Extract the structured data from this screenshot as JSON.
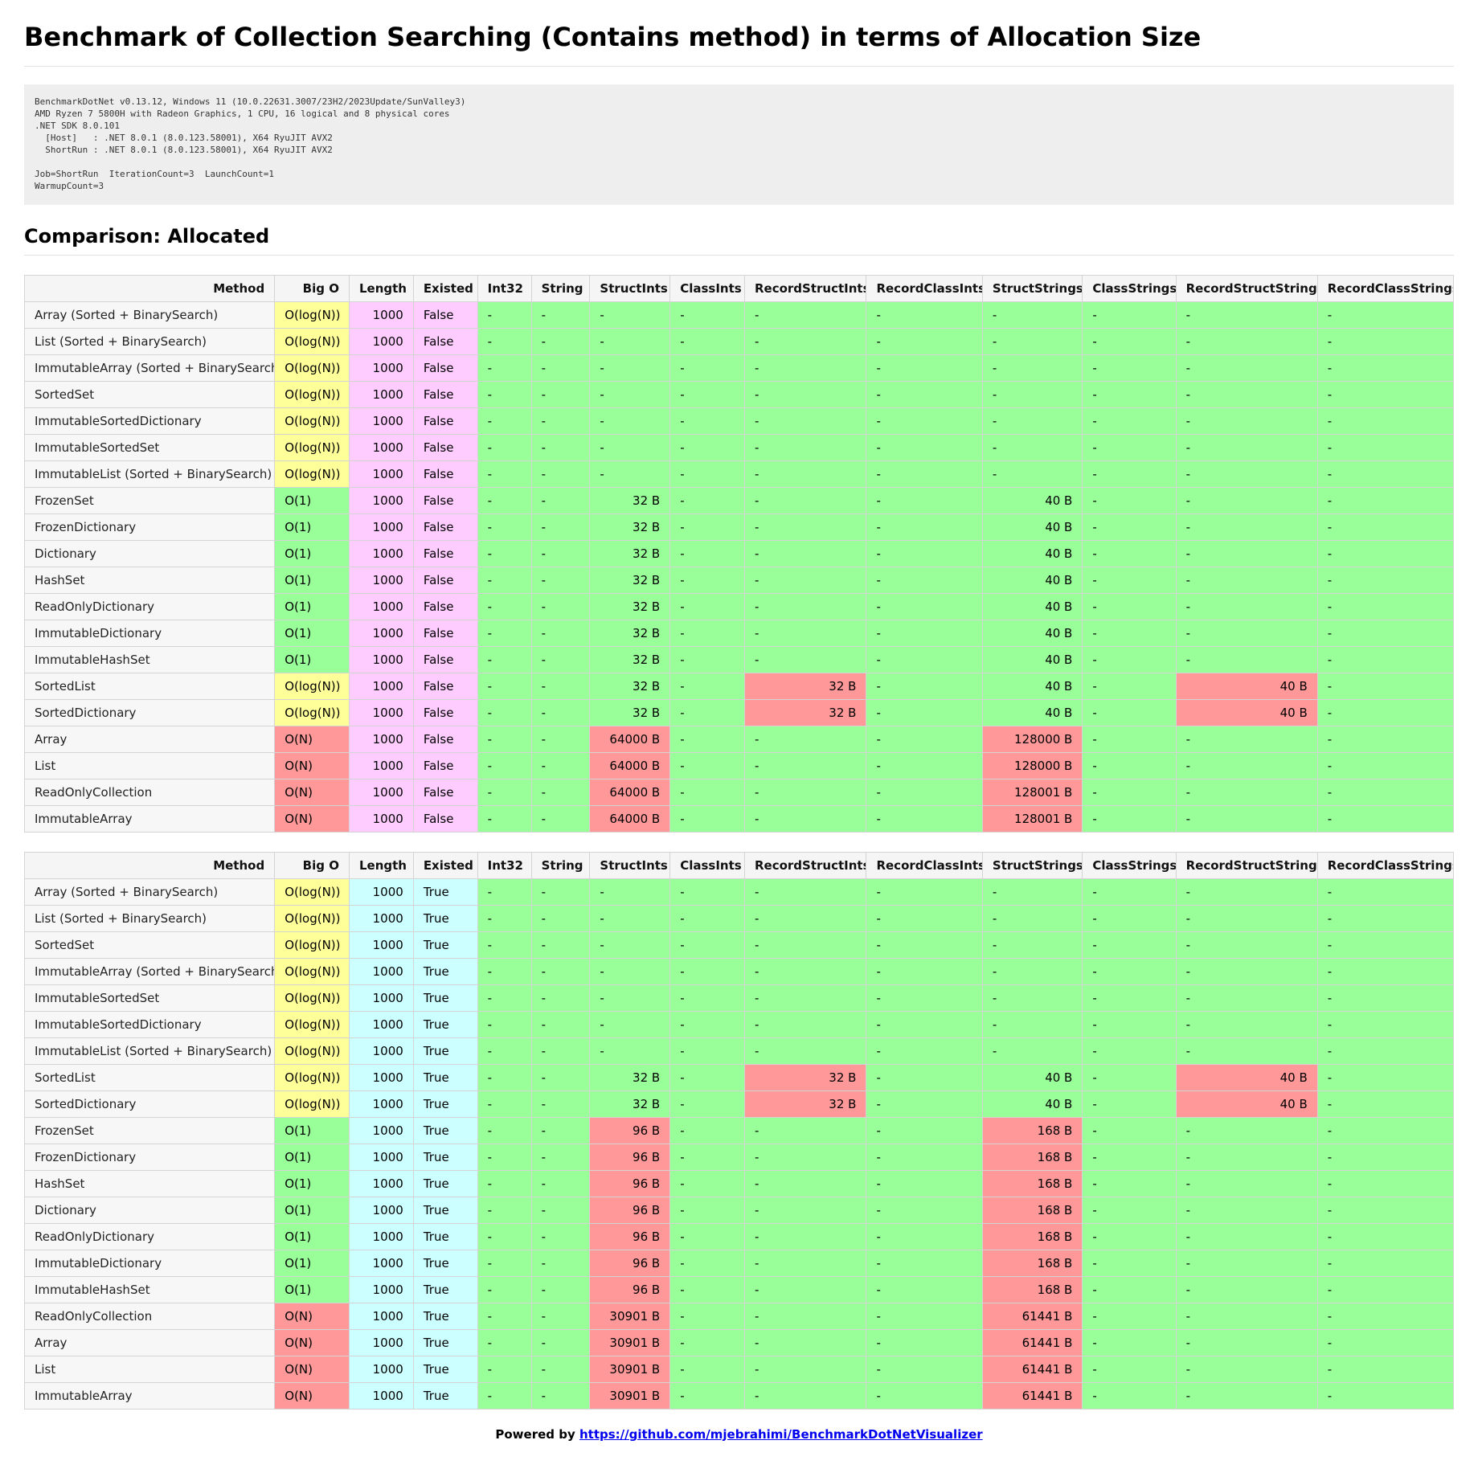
{
  "title": "Benchmark of Collection Searching (Contains method) in terms of Allocation Size",
  "environment": "BenchmarkDotNet v0.13.12, Windows 11 (10.0.22631.3007/23H2/2023Update/SunValley3)\nAMD Ryzen 7 5800H with Radeon Graphics, 1 CPU, 16 logical and 8 physical cores\n.NET SDK 8.0.101\n  [Host]   : .NET 8.0.1 (8.0.123.58001), X64 RyuJIT AVX2\n  ShortRun : .NET 8.0.1 (8.0.123.58001), X64 RyuJIT AVX2\n\nJob=ShortRun  IterationCount=3  LaunchCount=1\nWarmupCount=3",
  "section_title": "Comparison: Allocated",
  "columns": [
    "Method",
    "Big O",
    "Length",
    "Existed",
    "Int32",
    "String",
    "StructInts",
    "ClassInts",
    "RecordStructInts",
    "RecordClassInts",
    "StructStrings",
    "ClassStrings",
    "RecordStructStrings",
    "RecordClassStrings"
  ],
  "colors": {
    "good": "#99ff99",
    "medium": "#ffff99",
    "bad": "#ff9999",
    "existed_false": "#ffccff",
    "existed_true": "#ccffff"
  },
  "tables": [
    {
      "rows": [
        {
          "method": "Array (Sorted + BinarySearch)",
          "bigo": "O(log(N))",
          "length": "1000",
          "existed": "False",
          "values": [
            "-",
            "-",
            "-",
            "-",
            "-",
            "-",
            "-",
            "-",
            "-",
            "-"
          ]
        },
        {
          "method": "List (Sorted + BinarySearch)",
          "bigo": "O(log(N))",
          "length": "1000",
          "existed": "False",
          "values": [
            "-",
            "-",
            "-",
            "-",
            "-",
            "-",
            "-",
            "-",
            "-",
            "-"
          ]
        },
        {
          "method": "ImmutableArray (Sorted + BinarySearch)",
          "bigo": "O(log(N))",
          "length": "1000",
          "existed": "False",
          "values": [
            "-",
            "-",
            "-",
            "-",
            "-",
            "-",
            "-",
            "-",
            "-",
            "-"
          ]
        },
        {
          "method": "SortedSet",
          "bigo": "O(log(N))",
          "length": "1000",
          "existed": "False",
          "values": [
            "-",
            "-",
            "-",
            "-",
            "-",
            "-",
            "-",
            "-",
            "-",
            "-"
          ]
        },
        {
          "method": "ImmutableSortedDictionary",
          "bigo": "O(log(N))",
          "length": "1000",
          "existed": "False",
          "values": [
            "-",
            "-",
            "-",
            "-",
            "-",
            "-",
            "-",
            "-",
            "-",
            "-"
          ]
        },
        {
          "method": "ImmutableSortedSet",
          "bigo": "O(log(N))",
          "length": "1000",
          "existed": "False",
          "values": [
            "-",
            "-",
            "-",
            "-",
            "-",
            "-",
            "-",
            "-",
            "-",
            "-"
          ]
        },
        {
          "method": "ImmutableList (Sorted + BinarySearch)",
          "bigo": "O(log(N))",
          "length": "1000",
          "existed": "False",
          "values": [
            "-",
            "-",
            "-",
            "-",
            "-",
            "-",
            "-",
            "-",
            "-",
            "-"
          ]
        },
        {
          "method": "FrozenSet",
          "bigo": "O(1)",
          "length": "1000",
          "existed": "False",
          "values": [
            "-",
            "-",
            "32 B",
            "-",
            "-",
            "-",
            "40 B",
            "-",
            "-",
            "-"
          ]
        },
        {
          "method": "FrozenDictionary",
          "bigo": "O(1)",
          "length": "1000",
          "existed": "False",
          "values": [
            "-",
            "-",
            "32 B",
            "-",
            "-",
            "-",
            "40 B",
            "-",
            "-",
            "-"
          ]
        },
        {
          "method": "Dictionary",
          "bigo": "O(1)",
          "length": "1000",
          "existed": "False",
          "values": [
            "-",
            "-",
            "32 B",
            "-",
            "-",
            "-",
            "40 B",
            "-",
            "-",
            "-"
          ]
        },
        {
          "method": "HashSet",
          "bigo": "O(1)",
          "length": "1000",
          "existed": "False",
          "values": [
            "-",
            "-",
            "32 B",
            "-",
            "-",
            "-",
            "40 B",
            "-",
            "-",
            "-"
          ]
        },
        {
          "method": "ReadOnlyDictionary",
          "bigo": "O(1)",
          "length": "1000",
          "existed": "False",
          "values": [
            "-",
            "-",
            "32 B",
            "-",
            "-",
            "-",
            "40 B",
            "-",
            "-",
            "-"
          ]
        },
        {
          "method": "ImmutableDictionary",
          "bigo": "O(1)",
          "length": "1000",
          "existed": "False",
          "values": [
            "-",
            "-",
            "32 B",
            "-",
            "-",
            "-",
            "40 B",
            "-",
            "-",
            "-"
          ]
        },
        {
          "method": "ImmutableHashSet",
          "bigo": "O(1)",
          "length": "1000",
          "existed": "False",
          "values": [
            "-",
            "-",
            "32 B",
            "-",
            "-",
            "-",
            "40 B",
            "-",
            "-",
            "-"
          ]
        },
        {
          "method": "SortedList",
          "bigo": "O(log(N))",
          "length": "1000",
          "existed": "False",
          "values": [
            "-",
            "-",
            "32 B",
            "-",
            "32 B",
            "-",
            "40 B",
            "-",
            "40 B",
            "-"
          ]
        },
        {
          "method": "SortedDictionary",
          "bigo": "O(log(N))",
          "length": "1000",
          "existed": "False",
          "values": [
            "-",
            "-",
            "32 B",
            "-",
            "32 B",
            "-",
            "40 B",
            "-",
            "40 B",
            "-"
          ]
        },
        {
          "method": "Array",
          "bigo": "O(N)",
          "length": "1000",
          "existed": "False",
          "values": [
            "-",
            "-",
            "64000 B",
            "-",
            "-",
            "-",
            "128000 B",
            "-",
            "-",
            "-"
          ]
        },
        {
          "method": "List",
          "bigo": "O(N)",
          "length": "1000",
          "existed": "False",
          "values": [
            "-",
            "-",
            "64000 B",
            "-",
            "-",
            "-",
            "128000 B",
            "-",
            "-",
            "-"
          ]
        },
        {
          "method": "ReadOnlyCollection",
          "bigo": "O(N)",
          "length": "1000",
          "existed": "False",
          "values": [
            "-",
            "-",
            "64000 B",
            "-",
            "-",
            "-",
            "128001 B",
            "-",
            "-",
            "-"
          ]
        },
        {
          "method": "ImmutableArray",
          "bigo": "O(N)",
          "length": "1000",
          "existed": "False",
          "values": [
            "-",
            "-",
            "64000 B",
            "-",
            "-",
            "-",
            "128001 B",
            "-",
            "-",
            "-"
          ]
        }
      ]
    },
    {
      "rows": [
        {
          "method": "Array (Sorted + BinarySearch)",
          "bigo": "O(log(N))",
          "length": "1000",
          "existed": "True",
          "values": [
            "-",
            "-",
            "-",
            "-",
            "-",
            "-",
            "-",
            "-",
            "-",
            "-"
          ]
        },
        {
          "method": "List (Sorted + BinarySearch)",
          "bigo": "O(log(N))",
          "length": "1000",
          "existed": "True",
          "values": [
            "-",
            "-",
            "-",
            "-",
            "-",
            "-",
            "-",
            "-",
            "-",
            "-"
          ]
        },
        {
          "method": "SortedSet",
          "bigo": "O(log(N))",
          "length": "1000",
          "existed": "True",
          "values": [
            "-",
            "-",
            "-",
            "-",
            "-",
            "-",
            "-",
            "-",
            "-",
            "-"
          ]
        },
        {
          "method": "ImmutableArray (Sorted + BinarySearch)",
          "bigo": "O(log(N))",
          "length": "1000",
          "existed": "True",
          "values": [
            "-",
            "-",
            "-",
            "-",
            "-",
            "-",
            "-",
            "-",
            "-",
            "-"
          ]
        },
        {
          "method": "ImmutableSortedSet",
          "bigo": "O(log(N))",
          "length": "1000",
          "existed": "True",
          "values": [
            "-",
            "-",
            "-",
            "-",
            "-",
            "-",
            "-",
            "-",
            "-",
            "-"
          ]
        },
        {
          "method": "ImmutableSortedDictionary",
          "bigo": "O(log(N))",
          "length": "1000",
          "existed": "True",
          "values": [
            "-",
            "-",
            "-",
            "-",
            "-",
            "-",
            "-",
            "-",
            "-",
            "-"
          ]
        },
        {
          "method": "ImmutableList (Sorted + BinarySearch)",
          "bigo": "O(log(N))",
          "length": "1000",
          "existed": "True",
          "values": [
            "-",
            "-",
            "-",
            "-",
            "-",
            "-",
            "-",
            "-",
            "-",
            "-"
          ]
        },
        {
          "method": "SortedList",
          "bigo": "O(log(N))",
          "length": "1000",
          "existed": "True",
          "values": [
            "-",
            "-",
            "32 B",
            "-",
            "32 B",
            "-",
            "40 B",
            "-",
            "40 B",
            "-"
          ]
        },
        {
          "method": "SortedDictionary",
          "bigo": "O(log(N))",
          "length": "1000",
          "existed": "True",
          "values": [
            "-",
            "-",
            "32 B",
            "-",
            "32 B",
            "-",
            "40 B",
            "-",
            "40 B",
            "-"
          ]
        },
        {
          "method": "FrozenSet",
          "bigo": "O(1)",
          "length": "1000",
          "existed": "True",
          "values": [
            "-",
            "-",
            "96 B",
            "-",
            "-",
            "-",
            "168 B",
            "-",
            "-",
            "-"
          ]
        },
        {
          "method": "FrozenDictionary",
          "bigo": "O(1)",
          "length": "1000",
          "existed": "True",
          "values": [
            "-",
            "-",
            "96 B",
            "-",
            "-",
            "-",
            "168 B",
            "-",
            "-",
            "-"
          ]
        },
        {
          "method": "HashSet",
          "bigo": "O(1)",
          "length": "1000",
          "existed": "True",
          "values": [
            "-",
            "-",
            "96 B",
            "-",
            "-",
            "-",
            "168 B",
            "-",
            "-",
            "-"
          ]
        },
        {
          "method": "Dictionary",
          "bigo": "O(1)",
          "length": "1000",
          "existed": "True",
          "values": [
            "-",
            "-",
            "96 B",
            "-",
            "-",
            "-",
            "168 B",
            "-",
            "-",
            "-"
          ]
        },
        {
          "method": "ReadOnlyDictionary",
          "bigo": "O(1)",
          "length": "1000",
          "existed": "True",
          "values": [
            "-",
            "-",
            "96 B",
            "-",
            "-",
            "-",
            "168 B",
            "-",
            "-",
            "-"
          ]
        },
        {
          "method": "ImmutableDictionary",
          "bigo": "O(1)",
          "length": "1000",
          "existed": "True",
          "values": [
            "-",
            "-",
            "96 B",
            "-",
            "-",
            "-",
            "168 B",
            "-",
            "-",
            "-"
          ]
        },
        {
          "method": "ImmutableHashSet",
          "bigo": "O(1)",
          "length": "1000",
          "existed": "True",
          "values": [
            "-",
            "-",
            "96 B",
            "-",
            "-",
            "-",
            "168 B",
            "-",
            "-",
            "-"
          ]
        },
        {
          "method": "ReadOnlyCollection",
          "bigo": "O(N)",
          "length": "1000",
          "existed": "True",
          "values": [
            "-",
            "-",
            "30901 B",
            "-",
            "-",
            "-",
            "61441 B",
            "-",
            "-",
            "-"
          ]
        },
        {
          "method": "Array",
          "bigo": "O(N)",
          "length": "1000",
          "existed": "True",
          "values": [
            "-",
            "-",
            "30901 B",
            "-",
            "-",
            "-",
            "61441 B",
            "-",
            "-",
            "-"
          ]
        },
        {
          "method": "List",
          "bigo": "O(N)",
          "length": "1000",
          "existed": "True",
          "values": [
            "-",
            "-",
            "30901 B",
            "-",
            "-",
            "-",
            "61441 B",
            "-",
            "-",
            "-"
          ]
        },
        {
          "method": "ImmutableArray",
          "bigo": "O(N)",
          "length": "1000",
          "existed": "True",
          "values": [
            "-",
            "-",
            "30901 B",
            "-",
            "-",
            "-",
            "61441 B",
            "-",
            "-",
            "-"
          ]
        }
      ]
    }
  ],
  "footer": {
    "prefix": "Powered by",
    "link_text": "https://github.com/mjebrahimi/BenchmarkDotNetVisualizer"
  }
}
